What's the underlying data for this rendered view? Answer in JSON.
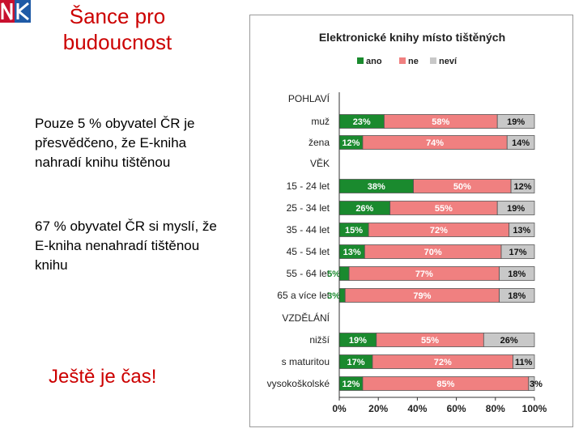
{
  "header": {
    "title": "Šance pro budoucnost"
  },
  "text": {
    "paragraph1": "Pouze 5 % obyvatel ČR je přesvědčeno, že E-kniha nahradí knihu tištěnou",
    "paragraph2": "67 % obyvatel ČR si myslí, že E-kniha nenahradí tištěnou knihu",
    "slogan": "Ještě je čas!"
  },
  "logo": {
    "icon": "nk-logo-icon",
    "colors": [
      "#c8102e",
      "#1f5aa6"
    ]
  },
  "chart_data": {
    "type": "bar",
    "stacked": true,
    "orientation": "horizontal",
    "title": "Elektronické knihy místo tištěných",
    "legend_position": "top",
    "series": [
      {
        "name": "ano",
        "color": "#1a8a2e",
        "values": [
          23,
          12,
          null,
          38,
          26,
          15,
          13,
          5,
          3,
          null,
          19,
          17,
          12
        ]
      },
      {
        "name": "ne",
        "color": "#f08080",
        "values": [
          58,
          74,
          null,
          50,
          55,
          72,
          70,
          77,
          79,
          null,
          55,
          72,
          85
        ]
      },
      {
        "name": "neví",
        "color": "#c8c8c8",
        "values": [
          19,
          14,
          null,
          12,
          19,
          13,
          17,
          18,
          18,
          null,
          26,
          11,
          3
        ]
      }
    ],
    "groups": [
      "POHLAVÍ",
      "VĚK",
      "VZDĚLÁNÍ"
    ],
    "categories": [
      "muž",
      "žena",
      "VĚK",
      "15 - 24 let",
      "25 - 34 let",
      "35 - 44 let",
      "45 - 54 let",
      "55 - 64 let",
      "65 a více let",
      "VZDĚLÁNÍ",
      "nižší",
      "s maturitou",
      "vysokoškolské"
    ],
    "data_labels": [
      [
        "23%",
        "58%",
        "19%"
      ],
      [
        "12%",
        "74%",
        "14%"
      ],
      null,
      [
        "38%",
        "50%",
        "12%"
      ],
      [
        "26%",
        "55%",
        "19%"
      ],
      [
        "15%",
        "72%",
        "13%"
      ],
      [
        "13%",
        "70%",
        "17%"
      ],
      [
        "5%",
        "77%",
        "18%"
      ],
      [
        "3%",
        "79%",
        "18%"
      ],
      null,
      [
        "19%",
        "55%",
        "26%"
      ],
      [
        "17%",
        "72%",
        "11%"
      ],
      [
        "12%",
        "85%",
        "3%"
      ]
    ],
    "x_ticks": [
      "0%",
      "20%",
      "40%",
      "60%",
      "80%",
      "100%"
    ],
    "xlim": [
      0,
      100
    ],
    "grid": false
  }
}
